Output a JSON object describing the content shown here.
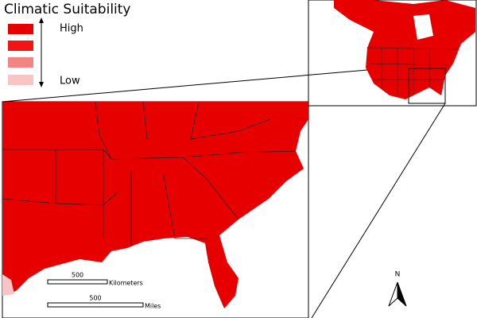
{
  "legend": {
    "title": "Climatic Suitability",
    "high": "High",
    "low": "Low",
    "colors": [
      "#e60000",
      "#f41414",
      "#f28484",
      "#f9c4c4"
    ]
  },
  "scale_bars": [
    {
      "value": 500,
      "unit": "Kilometers"
    },
    {
      "value": 500,
      "unit": "Miles"
    }
  ],
  "north_arrow": "N"
}
